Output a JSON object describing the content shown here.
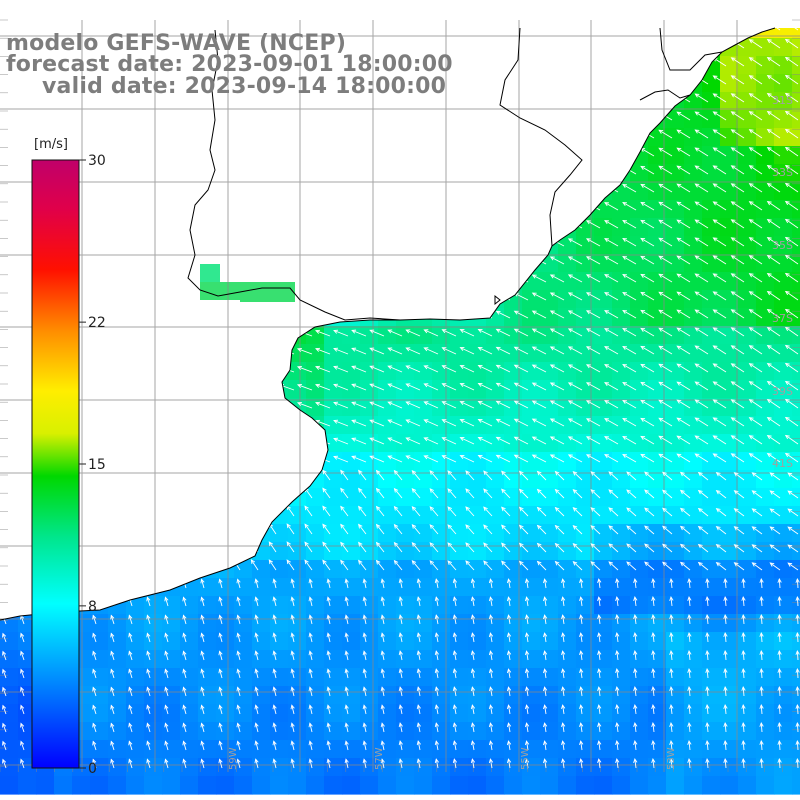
{
  "title": {
    "line1": "modelo GEFS-WAVE (NCEP)",
    "line2": "forecast date: 2023-09-01 18:00:00",
    "line3": "valid date: 2023-09-14 18:00:00"
  },
  "colorbar": {
    "unit": "[m/s]",
    "ticks": [
      "30",
      "22",
      "15",
      "8",
      "0"
    ],
    "tick_values": [
      30,
      22,
      15,
      8,
      0
    ],
    "range": [
      0,
      30
    ],
    "colors": [
      "#0000ff",
      "#00a0ff",
      "#00ffff",
      "#00e000",
      "#ffff00",
      "#ff8000",
      "#ff0000",
      "#c0006a"
    ]
  },
  "map": {
    "variable": "wind speed",
    "lat_labels": [
      "31S",
      "33S",
      "35S",
      "37S",
      "39S",
      "41S"
    ],
    "lon_labels": [
      "59W",
      "57W",
      "55W",
      "53W"
    ],
    "land_color": "#ffffff",
    "coast_color": "#000000",
    "grid_color": "#888888",
    "arrow_color": "#ffffff"
  }
}
